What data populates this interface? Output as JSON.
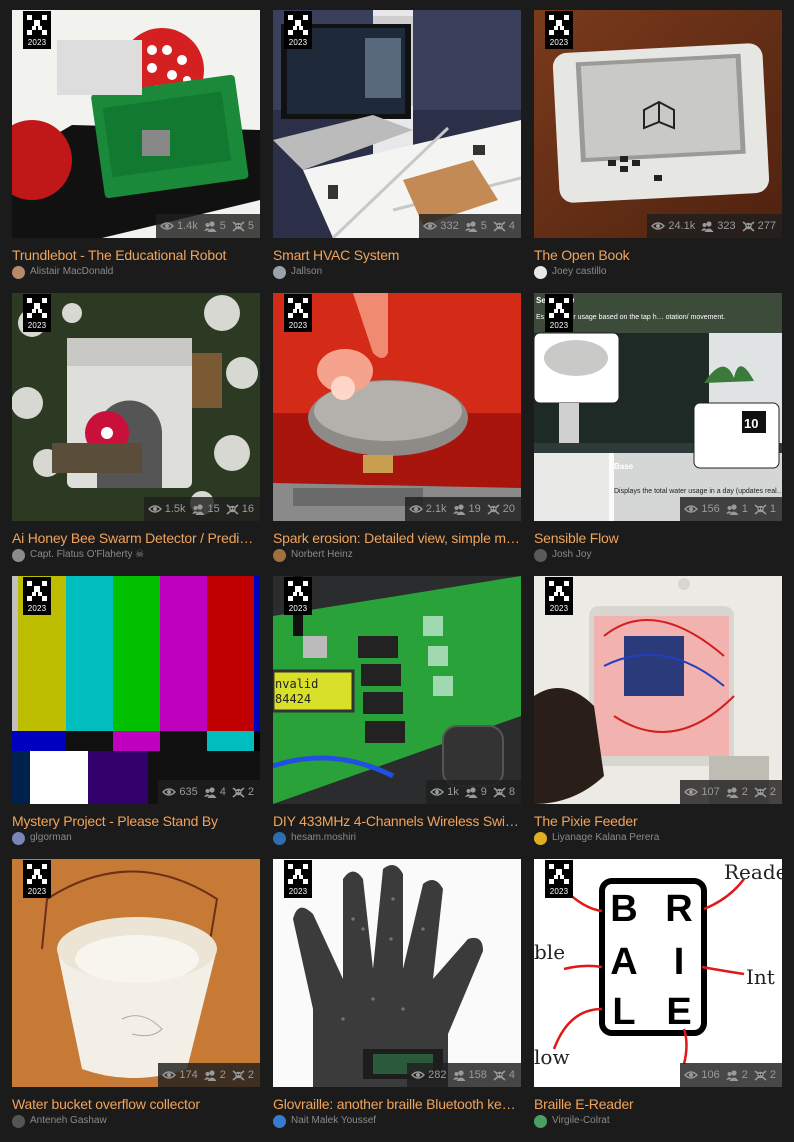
{
  "badge_year": "2023",
  "cards": [
    {
      "title": "Trundlebot - The Educational Robot",
      "author": "Alistair MacDonald",
      "views": "1.4k",
      "likes": "5",
      "skulls": "5",
      "avatar_color": "#b58a6a"
    },
    {
      "title": "Smart HVAC System",
      "author": "Jallson",
      "views": "332",
      "likes": "5",
      "skulls": "4",
      "avatar_color": "#9aa3ad"
    },
    {
      "title": "The Open Book",
      "author": "Joey castillo",
      "views": "24.1k",
      "likes": "323",
      "skulls": "277",
      "avatar_color": "#e8e8e8"
    },
    {
      "title": "Ai Honey Bee Swarm Detector / Predict…",
      "author": "Capt. Flatus O'Flaherty ☠",
      "views": "1.5k",
      "likes": "15",
      "skulls": "16",
      "avatar_color": "#8c8c8c"
    },
    {
      "title": "Spark erosion: Detailed view, simple m…",
      "author": "Norbert Heinz",
      "views": "2.1k",
      "likes": "19",
      "skulls": "20",
      "avatar_color": "#a07040"
    },
    {
      "title": "Sensible Flow",
      "author": "Josh Joy",
      "views": "156",
      "likes": "1",
      "skulls": "1",
      "avatar_color": "#5a5a5a"
    },
    {
      "title": "Mystery Project - Please Stand By",
      "author": "glgorman",
      "views": "635",
      "likes": "4",
      "skulls": "2",
      "avatar_color": "#7a86b8"
    },
    {
      "title": "DIY 433MHz 4-Channels Wireless Swit…",
      "author": "hesam.moshiri",
      "views": "1k",
      "likes": "9",
      "skulls": "8",
      "avatar_color": "#2c6fb0"
    },
    {
      "title": "The Pixie Feeder",
      "author": "Liyanage Kalana Perera",
      "views": "107",
      "likes": "2",
      "skulls": "2",
      "avatar_color": "#e0b020"
    },
    {
      "title": "Water bucket overflow collector",
      "author": "Anteneh Gashaw",
      "views": "174",
      "likes": "2",
      "skulls": "2",
      "avatar_color": "#555"
    },
    {
      "title": "Glovraille: another braille Bluetooth key…",
      "author": "Nait Malek Youssef",
      "views": "282",
      "likes": "158",
      "skulls": "4",
      "avatar_color": "#3a7ad0"
    },
    {
      "title": "Braille E-Reader",
      "author": "Virgile-Colrat",
      "views": "106",
      "likes": "2",
      "skulls": "2",
      "avatar_color": "#4aa060"
    }
  ],
  "braille_letters": [
    "B",
    "R",
    "A",
    "I",
    "L",
    "E"
  ],
  "braille_notes": [
    "Reade",
    "ble",
    "Int",
    "low"
  ],
  "sensible_flow_texts": {
    "header": "Se… Flow",
    "sub": "Es… s water usage based on the tap h… otation/ movement.",
    "base_title": "Base",
    "base_text": "Displays the total water usage in a day (updates real… to the cloud.",
    "display": "10"
  },
  "diy_lcd": [
    "nvalid",
    "84424"
  ],
  "colors": {
    "title": "#f0a35b",
    "bg": "#1b1b1b",
    "author": "#8a8a8a"
  }
}
